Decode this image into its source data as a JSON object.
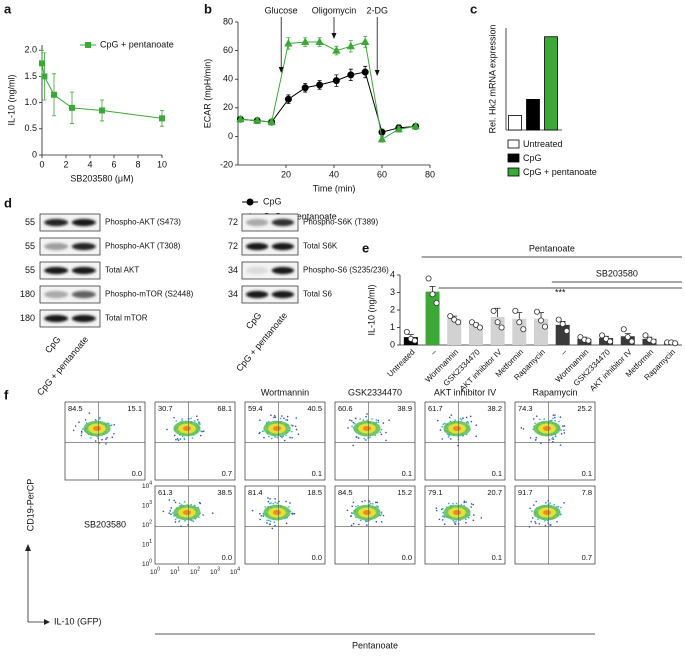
{
  "panels": [
    "a",
    "b",
    "c",
    "d",
    "e",
    "f"
  ],
  "chart_data": [
    {
      "type": "line",
      "x_label": "SB203580 (μM)",
      "y_label": "IL-10 (ng/ml)",
      "x": [
        0,
        0.2,
        1,
        2.5,
        5,
        10
      ],
      "series": [
        {
          "name": "CpG + pentanoate",
          "color": "#3aa935",
          "marker": "square",
          "values": [
            1.75,
            1.5,
            1.15,
            0.9,
            0.85,
            0.7
          ],
          "errors": [
            0.25,
            0.45,
            0.4,
            0.3,
            0.2,
            0.15
          ]
        }
      ],
      "xlim": [
        0,
        10
      ],
      "xticks": [
        0,
        2,
        4,
        6,
        8,
        10
      ],
      "ylim": [
        0,
        2.1
      ],
      "yticks": [
        0,
        0.5,
        {
          "value": 1,
          "label": "1.0"
        },
        1.5,
        {
          "value": 2,
          "label": "2.0"
        }
      ]
    },
    {
      "type": "line",
      "x_label": "Time (min)",
      "y_label": "ECAR (mpH/min)",
      "x": [
        1,
        8,
        14,
        21,
        28,
        34,
        41,
        47,
        53,
        60,
        67,
        74
      ],
      "series": [
        {
          "name": "CpG",
          "color": "#000000",
          "marker": "circle",
          "values": [
            12,
            11,
            10,
            26,
            34,
            36,
            39,
            43,
            45,
            3,
            6,
            7
          ],
          "errors": [
            2,
            2,
            2,
            3,
            3,
            3,
            4,
            4,
            4,
            2,
            2,
            2
          ]
        },
        {
          "name": "CpG + pentanoate",
          "color": "#3aa935",
          "marker": "triangle",
          "values": [
            12,
            11,
            10,
            65,
            66,
            66,
            60,
            63,
            66,
            -2,
            5,
            7
          ],
          "errors": [
            2,
            2,
            2,
            4,
            3,
            3,
            3,
            4,
            4,
            2,
            2,
            2
          ]
        }
      ],
      "xlim": [
        0,
        80
      ],
      "xticks": [
        20,
        40,
        60,
        80
      ],
      "ylim": [
        -20,
        80
      ],
      "yticks": [
        -20,
        0,
        20,
        40,
        60,
        80
      ],
      "annotations": [
        {
          "text": "Glucose",
          "x": 18
        },
        {
          "text": "Oligomycin",
          "x": 40
        },
        {
          "text": "2-DG",
          "x": 58
        }
      ]
    },
    {
      "type": "bar",
      "y_label": "Rel. Hk2 mRNA expression",
      "categories": [
        "Untreated",
        "CpG",
        "CpG + pentanoate"
      ],
      "values": [
        1,
        2.1,
        6.4
      ],
      "colors": [
        "#ffffff",
        "#000000",
        "#3aa935"
      ],
      "ylim": [
        0,
        7
      ]
    },
    {
      "type": "bar",
      "y_label": "IL-10 (ng/ml)",
      "categories": [
        "Untreated",
        "–",
        "Wortmannin",
        "GSK2334470",
        "AKT inhibitor IV",
        "Metformin",
        "Rapamycin",
        "–",
        "Wortmannin",
        "GSK2334470",
        "AKT inhibitor IV",
        "Metformin",
        "Rapamycin"
      ],
      "values": [
        0.45,
        3.05,
        1.5,
        1.15,
        1.6,
        1.5,
        1.5,
        1.15,
        0.35,
        0.4,
        0.5,
        0.35,
        0.15
      ],
      "errors": [
        0.15,
        0.3,
        0.15,
        0.1,
        0.5,
        0.35,
        0.35,
        0.2,
        0.1,
        0.1,
        0.15,
        0.1,
        0.03
      ],
      "points": [
        [
          0.75,
          0.35,
          0.25
        ],
        [
          3.8,
          2.9,
          2.4
        ],
        [
          1.65,
          1.45,
          1.3
        ],
        [
          1.3,
          1.15,
          1.0
        ],
        [
          1.95,
          1.3,
          1.0
        ],
        [
          1.95,
          1.3,
          0.9
        ],
        [
          1.9,
          1.4,
          1.05
        ],
        [
          1.45,
          1.2,
          0.8
        ],
        [
          0.45,
          0.3,
          0.25
        ],
        [
          0.55,
          0.35,
          0.2
        ],
        [
          0.9,
          0.45,
          0.2
        ],
        [
          0.55,
          0.3,
          0.2
        ],
        [
          0.15,
          0.15,
          0.1
        ]
      ],
      "colors": [
        "#000000",
        "#3aa935",
        "#d2d2d2",
        "#d2d2d2",
        "#d2d2d2",
        "#d2d2d2",
        "#d2d2d2",
        "#3a3a3a",
        "#3a3a3a",
        "#3a3a3a",
        "#3a3a3a",
        "#3a3a3a",
        "#3a3a3a"
      ],
      "ylim": [
        0,
        4
      ],
      "yticks": [
        0,
        1,
        2,
        3,
        4
      ],
      "annotations": [
        {
          "text": "Pentanoate",
          "from": 1,
          "to": 12
        },
        {
          "text": "SB203580",
          "from": 7,
          "to": 12
        },
        {
          "text": "***",
          "from": 1,
          "to": 12
        }
      ]
    }
  ],
  "blots": [
    {
      "lanes": [
        "CpG",
        "CpG + pentanoate"
      ],
      "rows": [
        {
          "mw": "55",
          "label": "Phospho-AKT (S473)"
        },
        {
          "mw": "55",
          "label": "Phospho-AKT (T308)"
        },
        {
          "mw": "55",
          "label": "Total AKT"
        },
        {
          "mw": "180",
          "label": "Phospho-mTOR (S2448)"
        },
        {
          "mw": "180",
          "label": "Total mTOR"
        }
      ]
    },
    {
      "lanes": [
        "CpG",
        "CpG + pentanoate"
      ],
      "rows": [
        {
          "mw": "72",
          "label": "Phospho-S6K (T389)"
        },
        {
          "mw": "72",
          "label": "Total S6K"
        },
        {
          "mw": "34",
          "label": "Phospho-S6 (S235/236)"
        },
        {
          "mw": "34",
          "label": "Total S6"
        }
      ]
    }
  ],
  "flow": {
    "headers": [
      "Wortmannin",
      "GSK2334470",
      "AKT inhibitor IV",
      "Rapamycin"
    ],
    "row_label": "SB203580",
    "rows": [
      [
        [
          "84.5",
          "15.1",
          "0.0"
        ],
        [
          "30.7",
          "68.1",
          "0.7"
        ],
        [
          "59.4",
          "40.5",
          "0.1"
        ],
        [
          "60.6",
          "38.9",
          "0.1"
        ],
        [
          "61.7",
          "38.2",
          "0.1"
        ],
        [
          "74.3",
          "25.2",
          "0.1"
        ]
      ],
      [
        [
          "61.3",
          "38.5",
          "0.0"
        ],
        [
          "81.4",
          "18.5",
          "0.0"
        ],
        [
          "84.5",
          "15.2",
          "0.0"
        ],
        [
          "79.1",
          "20.7",
          "0.1"
        ],
        [
          "91.7",
          "7.8",
          "0.7"
        ]
      ]
    ],
    "x_ticks": [
      {
        "base": "10",
        "exp": "0"
      },
      {
        "base": "10",
        "exp": "1"
      },
      {
        "base": "10",
        "exp": "2"
      },
      {
        "base": "10",
        "exp": "3"
      },
      {
        "base": "10",
        "exp": "4"
      }
    ],
    "y_ticks": [
      {
        "base": "10",
        "exp": "0"
      },
      {
        "base": "10",
        "exp": "1"
      },
      {
        "base": "10",
        "exp": "2"
      },
      {
        "base": "10",
        "exp": "3"
      },
      {
        "base": "10",
        "exp": "4"
      }
    ],
    "y_label": "CD19-PerCP",
    "x_label": "IL-10 (GFP)",
    "group_label": "Pentanoate"
  }
}
